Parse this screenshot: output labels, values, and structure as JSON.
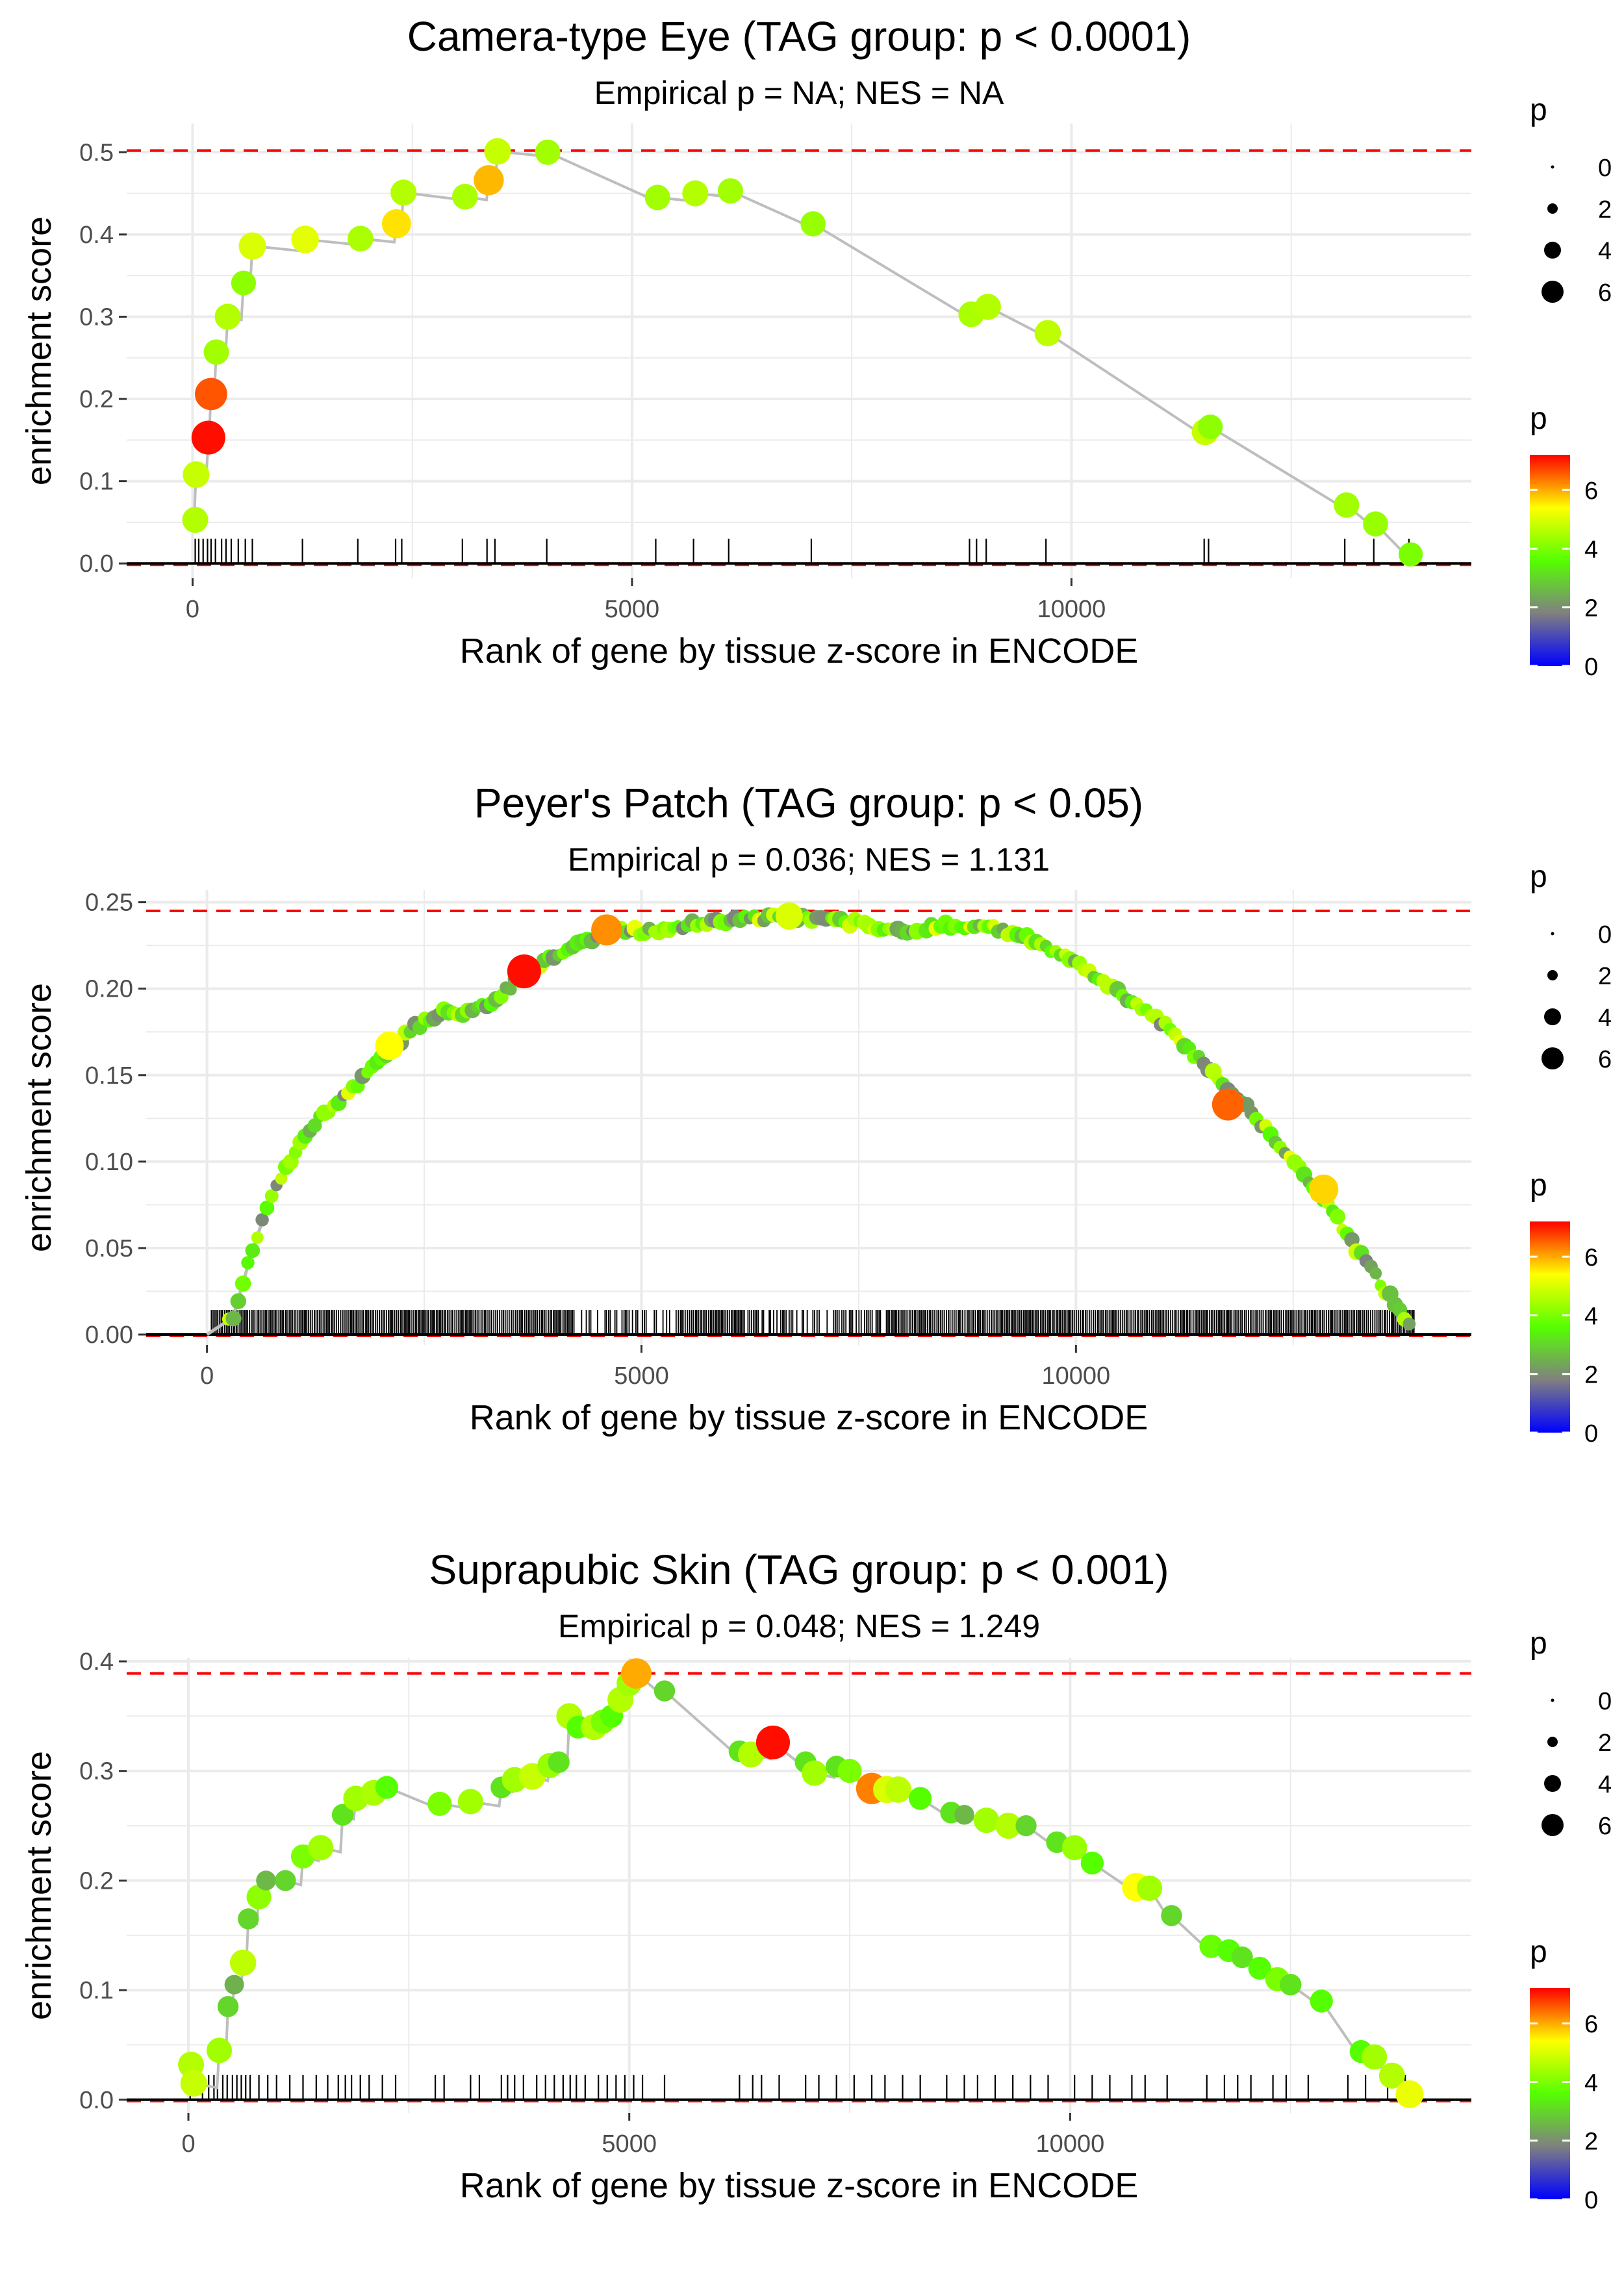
{
  "figure": {
    "palette": {
      "low": "#0000ff",
      "mid_low": "#808080",
      "mid": "#55ff00",
      "mid_high": "#ffff00",
      "high": "#ff0000",
      "line": "#bebebe",
      "max_line": "#ff0000",
      "grid": "#ebebeb"
    }
  },
  "chart_data": [
    {
      "type": "line",
      "title": "Camera-type Eye (TAG group: p < 0.0001)",
      "subtitle": "Empirical p = NA; NES = NA",
      "xlabel": "Rank of gene by tissue z-score in ENCODE",
      "ylabel": "enrichment score",
      "xlim": [
        -750,
        14550
      ],
      "ylim": [
        -0.018,
        0.535
      ],
      "xticks": [
        0,
        5000,
        10000
      ],
      "xtick_labels": [
        "0",
        "5000",
        "10000"
      ],
      "yticks": [
        0,
        0.1,
        0.2,
        0.3,
        0.4,
        0.5
      ],
      "ytick_labels": [
        "0.0",
        "0.1",
        "0.2",
        "0.3",
        "0.4",
        "0.5"
      ],
      "max_es": 0.502,
      "hit_ranks": [
        30,
        70,
        120,
        170,
        210,
        260,
        330,
        380,
        440,
        520,
        600,
        680,
        1250,
        1880,
        2310,
        2380,
        3070,
        3350,
        3440,
        4030,
        5270,
        5700,
        6100,
        7040,
        8840,
        8920,
        9030,
        9710,
        11510,
        11560,
        13110,
        13440,
        13840
      ],
      "legend_size": {
        "title": "p",
        "labels": [
          "0",
          "2",
          "4",
          "6"
        ]
      },
      "legend_color": {
        "title": "p",
        "labels": [
          "0",
          "2",
          "4",
          "6"
        ],
        "min": 0,
        "max": 7.2
      },
      "points": [
        {
          "x": 30,
          "y": 0.053,
          "p": 4.6
        },
        {
          "x": 40,
          "y": 0.108,
          "p": 4.8
        },
        {
          "x": 180,
          "y": 0.153,
          "p": 7.1
        },
        {
          "x": 210,
          "y": 0.206,
          "p": 6.6
        },
        {
          "x": 270,
          "y": 0.257,
          "p": 4.4
        },
        {
          "x": 400,
          "y": 0.3,
          "p": 4.6
        },
        {
          "x": 580,
          "y": 0.341,
          "p": 4.2
        },
        {
          "x": 680,
          "y": 0.386,
          "p": 5.0
        },
        {
          "x": 1280,
          "y": 0.394,
          "p": 5.1
        },
        {
          "x": 1910,
          "y": 0.395,
          "p": 4.5
        },
        {
          "x": 2320,
          "y": 0.413,
          "p": 5.6
        },
        {
          "x": 2400,
          "y": 0.451,
          "p": 4.6
        },
        {
          "x": 3100,
          "y": 0.446,
          "p": 4.5
        },
        {
          "x": 3370,
          "y": 0.466,
          "p": 5.9
        },
        {
          "x": 3470,
          "y": 0.501,
          "p": 4.8
        },
        {
          "x": 4040,
          "y": 0.5,
          "p": 4.4
        },
        {
          "x": 5290,
          "y": 0.445,
          "p": 4.4
        },
        {
          "x": 5720,
          "y": 0.45,
          "p": 4.6
        },
        {
          "x": 6120,
          "y": 0.453,
          "p": 4.4
        },
        {
          "x": 7060,
          "y": 0.413,
          "p": 4.3
        },
        {
          "x": 8860,
          "y": 0.303,
          "p": 4.5
        },
        {
          "x": 9050,
          "y": 0.312,
          "p": 4.6
        },
        {
          "x": 9730,
          "y": 0.28,
          "p": 4.7
        },
        {
          "x": 11520,
          "y": 0.16,
          "p": 4.8
        },
        {
          "x": 11580,
          "y": 0.166,
          "p": 4.2
        },
        {
          "x": 13130,
          "y": 0.071,
          "p": 4.4
        },
        {
          "x": 13460,
          "y": 0.048,
          "p": 4.3
        },
        {
          "x": 13860,
          "y": 0.011,
          "p": 4.0
        }
      ]
    },
    {
      "type": "line",
      "title": "Peyer's Patch (TAG group: p < 0.05)",
      "subtitle": "Empirical p = 0.036; NES = 1.131",
      "xlabel": "Rank of gene by tissue z-score in ENCODE",
      "ylabel": "enrichment score",
      "xlim": [
        -700,
        14550
      ],
      "ylim": [
        -0.006,
        0.257
      ],
      "xticks": [
        0,
        5000,
        10000
      ],
      "xtick_labels": [
        "0",
        "5000",
        "10000"
      ],
      "yticks": [
        0,
        0.05,
        0.1,
        0.15,
        0.2,
        0.25
      ],
      "ytick_labels": [
        "0.00",
        "0.05",
        "0.10",
        "0.15",
        "0.20",
        "0.25"
      ],
      "max_es": 0.245,
      "rug_range": [
        50,
        13900
      ],
      "legend_size": {
        "title": "p",
        "labels": [
          "0",
          "2",
          "4",
          "6"
        ]
      },
      "legend_color": {
        "title": "p",
        "labels": [
          "0",
          "2",
          "4",
          "6"
        ],
        "min": 0,
        "max": 7.2
      },
      "curve": [
        {
          "x": 0,
          "y": 0.0
        },
        {
          "x": 300,
          "y": 0.01
        },
        {
          "x": 500,
          "y": 0.045
        },
        {
          "x": 700,
          "y": 0.075
        },
        {
          "x": 900,
          "y": 0.095
        },
        {
          "x": 1200,
          "y": 0.12
        },
        {
          "x": 1500,
          "y": 0.135
        },
        {
          "x": 1800,
          "y": 0.148
        },
        {
          "x": 2100,
          "y": 0.165
        },
        {
          "x": 2400,
          "y": 0.178
        },
        {
          "x": 2700,
          "y": 0.187
        },
        {
          "x": 3000,
          "y": 0.186
        },
        {
          "x": 3300,
          "y": 0.193
        },
        {
          "x": 3700,
          "y": 0.21
        },
        {
          "x": 4100,
          "y": 0.222
        },
        {
          "x": 4600,
          "y": 0.233
        },
        {
          "x": 5000,
          "y": 0.233
        },
        {
          "x": 5500,
          "y": 0.237
        },
        {
          "x": 6000,
          "y": 0.24
        },
        {
          "x": 6500,
          "y": 0.241
        },
        {
          "x": 7000,
          "y": 0.24
        },
        {
          "x": 7500,
          "y": 0.238
        },
        {
          "x": 8000,
          "y": 0.233
        },
        {
          "x": 8500,
          "y": 0.237
        },
        {
          "x": 9000,
          "y": 0.236
        },
        {
          "x": 9500,
          "y": 0.228
        },
        {
          "x": 10000,
          "y": 0.215
        },
        {
          "x": 10500,
          "y": 0.198
        },
        {
          "x": 11000,
          "y": 0.18
        },
        {
          "x": 11500,
          "y": 0.155
        },
        {
          "x": 12000,
          "y": 0.13
        },
        {
          "x": 12500,
          "y": 0.1
        },
        {
          "x": 12800,
          "y": 0.082
        },
        {
          "x": 13200,
          "y": 0.052
        },
        {
          "x": 13500,
          "y": 0.03
        },
        {
          "x": 13850,
          "y": 0.005
        }
      ],
      "highlights": [
        {
          "x": 3650,
          "y": 0.21,
          "p": 7.1
        },
        {
          "x": 4600,
          "y": 0.234,
          "p": 6.2
        },
        {
          "x": 2100,
          "y": 0.167,
          "p": 5.4
        },
        {
          "x": 11750,
          "y": 0.133,
          "p": 6.5
        },
        {
          "x": 12850,
          "y": 0.084,
          "p": 5.7
        },
        {
          "x": 6700,
          "y": 0.242,
          "p": 5.0
        }
      ]
    },
    {
      "type": "line",
      "title": "Suprapubic Skin (TAG group: p < 0.001)",
      "subtitle": "Empirical p = 0.048; NES = 1.249",
      "xlabel": "Rank of gene by tissue z-score in ENCODE",
      "ylabel": "enrichment score",
      "xlim": [
        -700,
        14550
      ],
      "ylim": [
        -0.012,
        0.403
      ],
      "xticks": [
        0,
        5000,
        10000
      ],
      "xtick_labels": [
        "0",
        "5000",
        "10000"
      ],
      "yticks": [
        0,
        0.1,
        0.2,
        0.3,
        0.4
      ],
      "ytick_labels": [
        "0.0",
        "0.1",
        "0.2",
        "0.3",
        "0.4"
      ],
      "max_es": 0.389,
      "hit_ranks": [
        20,
        160,
        230,
        290,
        330,
        390,
        440,
        500,
        550,
        600,
        650,
        700,
        800,
        900,
        1000,
        1150,
        1300,
        1450,
        1580,
        1700,
        1780,
        1850,
        1950,
        2050,
        2200,
        2350,
        2800,
        2900,
        3200,
        3300,
        3550,
        3620,
        3700,
        3800,
        3950,
        4050,
        4150,
        4250,
        4330,
        4400,
        4500,
        4650,
        4750,
        4850,
        4950,
        5050,
        5150,
        5400,
        6250,
        6400,
        6500,
        6700,
        7000,
        7150,
        7350,
        7550,
        7750,
        7900,
        8100,
        8300,
        8600,
        8800,
        8950,
        9150,
        9350,
        9550,
        9750,
        10050,
        10250,
        10450,
        10700,
        10850,
        11100,
        11550,
        11750,
        11900,
        12050,
        12300,
        12450,
        12700,
        13150,
        13350,
        13600,
        13800
      ],
      "legend_size": {
        "title": "p",
        "labels": [
          "0",
          "2",
          "4",
          "6"
        ]
      },
      "legend_color": {
        "title": "p",
        "labels": [
          "0",
          "2",
          "4",
          "6"
        ],
        "min": 0,
        "max": 7.2
      },
      "points": [
        {
          "x": 30,
          "y": 0.032,
          "p": 4.6
        },
        {
          "x": 60,
          "y": 0.015,
          "p": 4.8
        },
        {
          "x": 350,
          "y": 0.045,
          "p": 4.4
        },
        {
          "x": 450,
          "y": 0.085,
          "p": 3.0
        },
        {
          "x": 520,
          "y": 0.105,
          "p": 2.5
        },
        {
          "x": 620,
          "y": 0.125,
          "p": 4.7
        },
        {
          "x": 680,
          "y": 0.165,
          "p": 3.0
        },
        {
          "x": 800,
          "y": 0.185,
          "p": 4.2
        },
        {
          "x": 880,
          "y": 0.2,
          "p": 2.6
        },
        {
          "x": 1100,
          "y": 0.2,
          "p": 3.0
        },
        {
          "x": 1300,
          "y": 0.222,
          "p": 4.0
        },
        {
          "x": 1500,
          "y": 0.23,
          "p": 4.4
        },
        {
          "x": 1750,
          "y": 0.26,
          "p": 3.2
        },
        {
          "x": 1900,
          "y": 0.275,
          "p": 4.4
        },
        {
          "x": 2100,
          "y": 0.28,
          "p": 4.5
        },
        {
          "x": 2250,
          "y": 0.285,
          "p": 3.6
        },
        {
          "x": 2850,
          "y": 0.27,
          "p": 4.0
        },
        {
          "x": 3200,
          "y": 0.272,
          "p": 4.4
        },
        {
          "x": 3550,
          "y": 0.285,
          "p": 3.2
        },
        {
          "x": 3700,
          "y": 0.292,
          "p": 4.4
        },
        {
          "x": 3900,
          "y": 0.295,
          "p": 4.8
        },
        {
          "x": 4100,
          "y": 0.305,
          "p": 4.3
        },
        {
          "x": 4200,
          "y": 0.308,
          "p": 3.2
        },
        {
          "x": 4320,
          "y": 0.35,
          "p": 4.6
        },
        {
          "x": 4420,
          "y": 0.34,
          "p": 3.6
        },
        {
          "x": 4600,
          "y": 0.34,
          "p": 4.6
        },
        {
          "x": 4700,
          "y": 0.345,
          "p": 4.0
        },
        {
          "x": 4800,
          "y": 0.35,
          "p": 3.6
        },
        {
          "x": 4900,
          "y": 0.365,
          "p": 4.6
        },
        {
          "x": 5000,
          "y": 0.38,
          "p": 4.4
        },
        {
          "x": 5080,
          "y": 0.389,
          "p": 6.0
        },
        {
          "x": 5400,
          "y": 0.373,
          "p": 3.0
        },
        {
          "x": 6250,
          "y": 0.318,
          "p": 3.2
        },
        {
          "x": 6380,
          "y": 0.315,
          "p": 4.6
        },
        {
          "x": 6630,
          "y": 0.326,
          "p": 7.1
        },
        {
          "x": 7000,
          "y": 0.308,
          "p": 3.2
        },
        {
          "x": 7100,
          "y": 0.298,
          "p": 4.4
        },
        {
          "x": 7350,
          "y": 0.304,
          "p": 3.2
        },
        {
          "x": 7500,
          "y": 0.3,
          "p": 4.0
        },
        {
          "x": 7750,
          "y": 0.284,
          "p": 6.3
        },
        {
          "x": 7920,
          "y": 0.283,
          "p": 5.0
        },
        {
          "x": 8050,
          "y": 0.283,
          "p": 4.7
        },
        {
          "x": 8300,
          "y": 0.275,
          "p": 3.6
        },
        {
          "x": 8650,
          "y": 0.262,
          "p": 3.2
        },
        {
          "x": 8800,
          "y": 0.26,
          "p": 2.6
        },
        {
          "x": 9050,
          "y": 0.255,
          "p": 4.4
        },
        {
          "x": 9300,
          "y": 0.25,
          "p": 4.6
        },
        {
          "x": 9500,
          "y": 0.25,
          "p": 3.0
        },
        {
          "x": 9850,
          "y": 0.235,
          "p": 3.2
        },
        {
          "x": 10050,
          "y": 0.23,
          "p": 4.3
        },
        {
          "x": 10250,
          "y": 0.216,
          "p": 3.6
        },
        {
          "x": 10750,
          "y": 0.194,
          "p": 5.4
        },
        {
          "x": 10900,
          "y": 0.193,
          "p": 4.4
        },
        {
          "x": 11150,
          "y": 0.168,
          "p": 3.0
        },
        {
          "x": 11600,
          "y": 0.14,
          "p": 3.8
        },
        {
          "x": 11800,
          "y": 0.136,
          "p": 3.6
        },
        {
          "x": 11950,
          "y": 0.13,
          "p": 3.2
        },
        {
          "x": 12150,
          "y": 0.12,
          "p": 3.6
        },
        {
          "x": 12350,
          "y": 0.11,
          "p": 4.0
        },
        {
          "x": 12500,
          "y": 0.105,
          "p": 3.2
        },
        {
          "x": 12850,
          "y": 0.09,
          "p": 3.6
        },
        {
          "x": 13300,
          "y": 0.044,
          "p": 3.6
        },
        {
          "x": 13450,
          "y": 0.039,
          "p": 4.4
        },
        {
          "x": 13650,
          "y": 0.022,
          "p": 4.6
        },
        {
          "x": 13850,
          "y": 0.005,
          "p": 5.2
        }
      ]
    }
  ]
}
